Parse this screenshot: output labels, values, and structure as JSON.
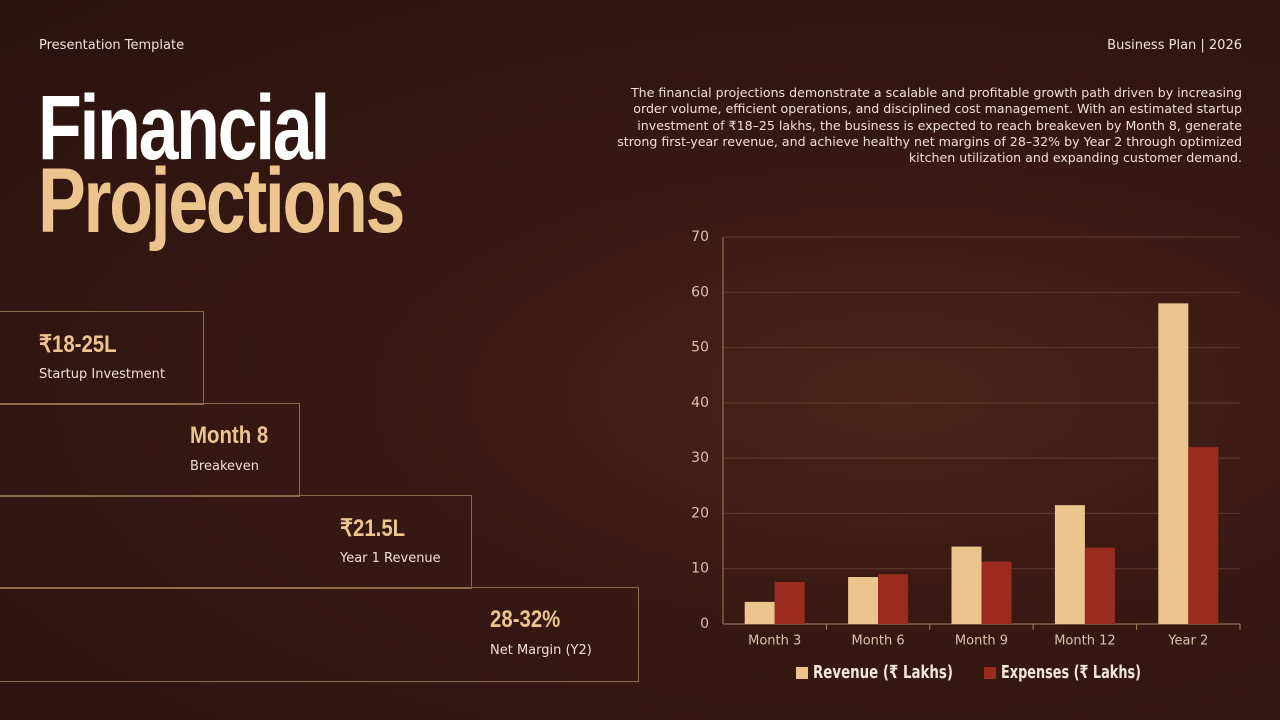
{
  "header": {
    "left": "Presentation Template",
    "right": "Business Plan | 2026"
  },
  "title": {
    "line1": "Financial",
    "line2": "Projections"
  },
  "description": "The financial projections demonstrate a scalable and profitable growth path driven by increasing order volume, efficient operations, and disciplined cost management. With an estimated startup investment of ₹18–25 lakhs, the business is expected to reach breakeven by Month 8, generate strong first-year revenue, and achieve healthy net margins of 28–32% by Year 2 through optimized kitchen utilization and expanding customer demand.",
  "stats": [
    {
      "value": "₹18-25L",
      "label": "Startup Investment"
    },
    {
      "value": "Month 8",
      "label": "Breakeven"
    },
    {
      "value": "₹21.5L",
      "label": "Year 1 Revenue"
    },
    {
      "value": "28-32%",
      "label": "Net Margin (Y2)"
    }
  ],
  "chart_data": {
    "type": "bar",
    "categories": [
      "Month 3",
      "Month 6",
      "Month 9",
      "Month 12",
      "Year 2"
    ],
    "series": [
      {
        "name": "Revenue (₹ Lakhs)",
        "color": "#ebc48e",
        "values": [
          4,
          8.5,
          14,
          21.5,
          58
        ]
      },
      {
        "name": "Expenses (₹ Lakhs)",
        "color": "#9b2b1f",
        "values": [
          7.6,
          9,
          11.3,
          13.8,
          32
        ]
      }
    ],
    "ylim": [
      0,
      70
    ],
    "yticks": [
      0,
      10,
      20,
      30,
      40,
      50,
      60,
      70
    ],
    "grid": true
  }
}
